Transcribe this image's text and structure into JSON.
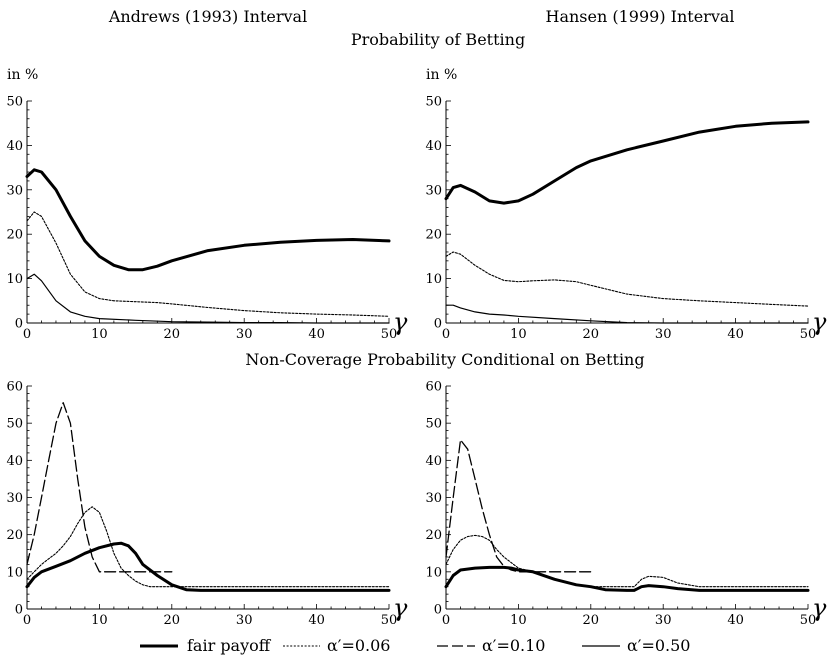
{
  "titles": {
    "left_column": "Andrews (1993) Interval",
    "right_column": "Hansen (1999) Interval",
    "top_row": "Probability of Betting",
    "bottom_row": "Non-Coverage Probability Conditional on Betting"
  },
  "legend": [
    {
      "label": "fair payoff",
      "style": "thick-solid"
    },
    {
      "label": "α′=0.06",
      "style": "dotted"
    },
    {
      "label": "α′=0.10",
      "style": "dashed"
    },
    {
      "label": "α′=0.50",
      "style": "thin-solid"
    }
  ],
  "chart_data": [
    {
      "type": "line",
      "panel": "andrews-betting",
      "ylabel": "in %",
      "xlabel": "γ",
      "xlim": [
        0,
        50
      ],
      "ylim": [
        0,
        50
      ],
      "xticks": [
        0,
        10,
        20,
        30,
        40,
        50
      ],
      "yticks": [
        0,
        10,
        20,
        30,
        40,
        50
      ],
      "series": [
        {
          "name": "fair payoff",
          "style": "thick",
          "x": [
            0,
            1,
            2,
            4,
            6,
            8,
            10,
            12,
            14,
            16,
            18,
            20,
            25,
            30,
            35,
            40,
            45,
            50
          ],
          "y": [
            33,
            34.5,
            34,
            30,
            24,
            18.5,
            15,
            13,
            12,
            12,
            12.8,
            14,
            16.3,
            17.5,
            18.2,
            18.6,
            18.8,
            18.5
          ]
        },
        {
          "name": "α′=0.06",
          "style": "dotted",
          "x": [
            0,
            1,
            2,
            4,
            6,
            8,
            10,
            12,
            15,
            18,
            20,
            25,
            30,
            35,
            40,
            45,
            50
          ],
          "y": [
            23,
            25,
            24,
            18,
            11,
            7,
            5.5,
            5,
            4.8,
            4.6,
            4.3,
            3.5,
            2.8,
            2.3,
            2,
            1.8,
            1.5
          ]
        },
        {
          "name": "α′=0.50",
          "style": "thin",
          "x": [
            0,
            1,
            2,
            4,
            6,
            8,
            10,
            15,
            20,
            25,
            30,
            35,
            40,
            50
          ],
          "y": [
            10,
            11,
            9.5,
            5,
            2.5,
            1.5,
            1,
            0.6,
            0.3,
            0.2,
            0.1,
            0.1,
            0,
            0
          ]
        }
      ]
    },
    {
      "type": "line",
      "panel": "hansen-betting",
      "ylabel": "in %",
      "xlabel": "γ",
      "xlim": [
        0,
        50
      ],
      "ylim": [
        0,
        50
      ],
      "xticks": [
        0,
        10,
        20,
        30,
        40,
        50
      ],
      "yticks": [
        0,
        10,
        20,
        30,
        40,
        50
      ],
      "series": [
        {
          "name": "fair payoff",
          "style": "thick",
          "x": [
            0,
            1,
            2,
            4,
            6,
            8,
            10,
            12,
            15,
            18,
            20,
            25,
            30,
            35,
            40,
            45,
            50
          ],
          "y": [
            28,
            30.5,
            31,
            29.5,
            27.5,
            27,
            27.5,
            29,
            32,
            35,
            36.5,
            39,
            41,
            43,
            44.3,
            45,
            45.3
          ]
        },
        {
          "name": "α′=0.06",
          "style": "dotted",
          "x": [
            0,
            1,
            2,
            4,
            6,
            8,
            10,
            12,
            15,
            18,
            20,
            25,
            30,
            35,
            40,
            45,
            50
          ],
          "y": [
            15,
            16,
            15.5,
            13,
            11,
            9.6,
            9.3,
            9.5,
            9.7,
            9.3,
            8.5,
            6.5,
            5.5,
            5,
            4.6,
            4.2,
            3.8
          ]
        },
        {
          "name": "α′=0.50",
          "style": "thin",
          "x": [
            0,
            1,
            2,
            4,
            6,
            8,
            10,
            15,
            20,
            25,
            30,
            40,
            50
          ],
          "y": [
            4,
            4,
            3.4,
            2.5,
            2,
            1.8,
            1.5,
            1,
            0.5,
            0.1,
            0,
            0,
            0
          ]
        }
      ]
    },
    {
      "type": "line",
      "panel": "andrews-noncoverage",
      "xlabel": "γ",
      "xlim": [
        0,
        50
      ],
      "ylim": [
        0,
        60
      ],
      "xticks": [
        0,
        10,
        20,
        30,
        40,
        50
      ],
      "yticks": [
        0,
        10,
        20,
        30,
        40,
        50,
        60
      ],
      "series": [
        {
          "name": "fair payoff",
          "style": "thick",
          "x": [
            0,
            1,
            2,
            4,
            6,
            8,
            10,
            12,
            13,
            14,
            15,
            16,
            18,
            20,
            22,
            24,
            30,
            40,
            50
          ],
          "y": [
            6,
            8.5,
            10,
            11.5,
            13,
            15,
            16.5,
            17.5,
            17.7,
            17,
            15,
            12,
            9,
            6.5,
            5.2,
            5,
            5,
            5,
            5
          ]
        },
        {
          "name": "α′=0.06",
          "style": "dotted",
          "x": [
            0,
            1,
            2,
            3,
            4,
            5,
            6,
            7,
            8,
            9,
            10,
            11,
            12,
            13,
            14,
            15,
            16,
            17,
            18,
            20,
            30,
            40,
            50
          ],
          "y": [
            8,
            10,
            12,
            13.5,
            15,
            17,
            19.5,
            23,
            26,
            27.5,
            26,
            21,
            15,
            11,
            9,
            7.5,
            6.5,
            6,
            6,
            6,
            6,
            6,
            6
          ]
        },
        {
          "name": "α′=0.10",
          "style": "dashed",
          "x": [
            0,
            1,
            2,
            3,
            4,
            5,
            6,
            7,
            8,
            9,
            10,
            12,
            15,
            20
          ],
          "y": [
            12,
            20,
            30,
            40,
            50,
            55.5,
            50,
            35,
            22,
            14,
            10,
            10,
            10,
            10
          ]
        }
      ]
    },
    {
      "type": "line",
      "panel": "hansen-noncoverage",
      "xlabel": "γ",
      "xlim": [
        0,
        50
      ],
      "ylim": [
        0,
        60
      ],
      "xticks": [
        0,
        10,
        20,
        30,
        40,
        50
      ],
      "yticks": [
        0,
        10,
        20,
        30,
        40,
        50,
        60
      ],
      "series": [
        {
          "name": "fair payoff",
          "style": "thick",
          "x": [
            0,
            1,
            2,
            4,
            6,
            8,
            9,
            10,
            12,
            15,
            18,
            20,
            22,
            25,
            26,
            27,
            28,
            30,
            32,
            35,
            40,
            50
          ],
          "y": [
            6,
            9,
            10.5,
            11,
            11.2,
            11.2,
            11,
            10.5,
            10,
            8,
            6.5,
            6,
            5.2,
            5,
            5,
            6,
            6.3,
            6,
            5.5,
            5,
            5,
            5
          ]
        },
        {
          "name": "α′=0.06",
          "style": "dotted",
          "x": [
            0,
            1,
            2,
            3,
            4,
            5,
            6,
            7,
            8,
            10,
            12,
            15,
            18,
            20,
            22,
            24,
            25,
            26,
            27,
            28,
            30,
            32,
            35,
            40,
            50
          ],
          "y": [
            12,
            16,
            18.5,
            19.5,
            19.8,
            19.5,
            18.5,
            16,
            14,
            11,
            10,
            8,
            6.5,
            6,
            6,
            6,
            6,
            6,
            8,
            8.8,
            8.5,
            7,
            6,
            6,
            6
          ]
        },
        {
          "name": "α′=0.10",
          "style": "dashed",
          "x": [
            0,
            1,
            2,
            3,
            4,
            5,
            6,
            7,
            8,
            9,
            10,
            12,
            15,
            18,
            20
          ],
          "y": [
            14,
            30,
            45.5,
            43,
            35,
            27,
            20,
            14,
            11.5,
            10.5,
            10,
            10,
            10,
            10,
            10
          ]
        }
      ]
    }
  ]
}
